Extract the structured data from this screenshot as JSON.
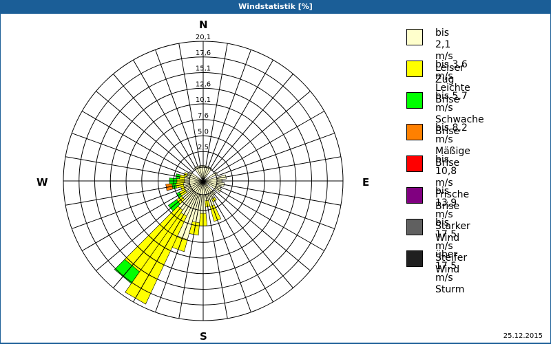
{
  "window": {
    "title": "Windstatistik [%]"
  },
  "compass": {
    "n": "N",
    "e": "E",
    "s": "S",
    "w": "W"
  },
  "ring_labels": [
    "2,5",
    "5,0",
    "7,6",
    "10,1",
    "12,6",
    "15,1",
    "17,6",
    "20,1"
  ],
  "legend": [
    {
      "range": "bis 2,1 m/s",
      "name": "Leiser Zug",
      "color": "#ffffcc"
    },
    {
      "range": "bis 3,6 m/s",
      "name": "Leichte Brise",
      "color": "#ffff00"
    },
    {
      "range": "bis 5,7 m/s",
      "name": "Schwache Brise",
      "color": "#00ff00"
    },
    {
      "range": "bis 8,2 m/s",
      "name": "Mäßige Brise",
      "color": "#ff8000"
    },
    {
      "range": "bis 10,8 m/s",
      "name": "Frische Brise",
      "color": "#ff0000"
    },
    {
      "range": "bis 13,9 m/s",
      "name": "Starker Wind",
      "color": "#800080"
    },
    {
      "range": "bis 17,5 m/s",
      "name": "Steifer Wind",
      "color": "#606060"
    },
    {
      "range": "über 17,5 m/s",
      "name": "Sturm",
      "color": "#202020"
    }
  ],
  "footer": {
    "date": "25.12.2015"
  },
  "chart_data": {
    "type": "polar-stacked-bar (wind rose)",
    "title": "Windstatistik [%]",
    "direction_step_deg": 10,
    "rmax": 20.1,
    "ring_ticks": [
      2.5,
      5.0,
      7.6,
      10.1,
      12.6,
      15.1,
      17.6,
      20.1
    ],
    "series_names": [
      "bis 2,1 m/s",
      "bis 3,6 m/s",
      "bis 5,7 m/s",
      "bis 8,2 m/s",
      "bis 10,8 m/s",
      "bis 13,9 m/s",
      "bis 17,5 m/s",
      "über 17,5 m/s"
    ],
    "sectors": [
      {
        "dir": 0,
        "cumulative": [
          0.3
        ]
      },
      {
        "dir": 10,
        "cumulative": [
          0.2
        ]
      },
      {
        "dir": 20,
        "cumulative": [
          0.2
        ]
      },
      {
        "dir": 30,
        "cumulative": [
          0.2
        ]
      },
      {
        "dir": 60,
        "cumulative": [
          0.3
        ]
      },
      {
        "dir": 80,
        "cumulative": [
          1.5
        ]
      },
      {
        "dir": 90,
        "cumulative": [
          0.8
        ]
      },
      {
        "dir": 100,
        "cumulative": [
          1.2
        ]
      },
      {
        "dir": 110,
        "cumulative": [
          0.8
        ]
      },
      {
        "dir": 120,
        "cumulative": [
          1.0
        ]
      },
      {
        "dir": 140,
        "cumulative": [
          0.6
        ]
      },
      {
        "dir": 150,
        "cumulative": [
          1.0,
          1.5
        ]
      },
      {
        "dir": 160,
        "cumulative": [
          2.0,
          4.5
        ]
      },
      {
        "dir": 170,
        "cumulative": [
          1.0,
          2.0
        ]
      },
      {
        "dir": 180,
        "cumulative": [
          3.0,
          5.0
        ]
      },
      {
        "dir": 190,
        "cumulative": [
          4.5,
          6.5
        ]
      },
      {
        "dir": 200,
        "cumulative": [
          7.5,
          9.5
        ]
      },
      {
        "dir": 210,
        "cumulative": [
          4.0,
          19.5
        ]
      },
      {
        "dir": 220,
        "cumulative": [
          3.5,
          15.5,
          17.8
        ]
      },
      {
        "dir": 230,
        "cumulative": [
          2.0,
          3.0,
          4.6
        ]
      },
      {
        "dir": 240,
        "cumulative": [
          1.0,
          2.0,
          2.5
        ]
      },
      {
        "dir": 250,
        "cumulative": [
          1.0,
          1.5
        ]
      },
      {
        "dir": 260,
        "cumulative": [
          1.0,
          2.2,
          2.8,
          3.8
        ]
      },
      {
        "dir": 270,
        "cumulative": [
          0.8,
          2.0,
          3.2
        ]
      },
      {
        "dir": 280,
        "cumulative": [
          0.8,
          1.6,
          2.2
        ]
      },
      {
        "dir": 290,
        "cumulative": [
          0.5,
          1.0
        ]
      },
      {
        "dir": 300,
        "cumulative": [
          0.4
        ]
      },
      {
        "dir": 330,
        "cumulative": [
          0.3
        ]
      },
      {
        "dir": 340,
        "cumulative": [
          0.3
        ]
      },
      {
        "dir": 350,
        "cumulative": [
          0.3
        ]
      }
    ]
  }
}
